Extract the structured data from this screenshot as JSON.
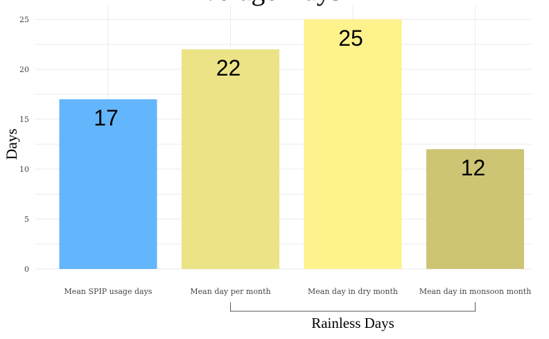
{
  "chart_data": {
    "type": "bar",
    "title": "Average Days",
    "ylabel": "Days",
    "xlabel": "",
    "ylim": [
      0,
      26
    ],
    "yticks": [
      0,
      5,
      10,
      15,
      20,
      25
    ],
    "grid": true,
    "categories": [
      "Mean SPIP usage days",
      "Mean day per month",
      "Mean day in dry month",
      "Mean day in monsoon month"
    ],
    "values": [
      17,
      22,
      25,
      12
    ],
    "colors": [
      "#63b5fc",
      "#ebe386",
      "#fdf28c",
      "#cdc574"
    ],
    "data_labels": [
      "17",
      "22",
      "25",
      "12"
    ],
    "group": {
      "label": "Rainless Days",
      "from_category": 1,
      "to_category": 3
    }
  }
}
